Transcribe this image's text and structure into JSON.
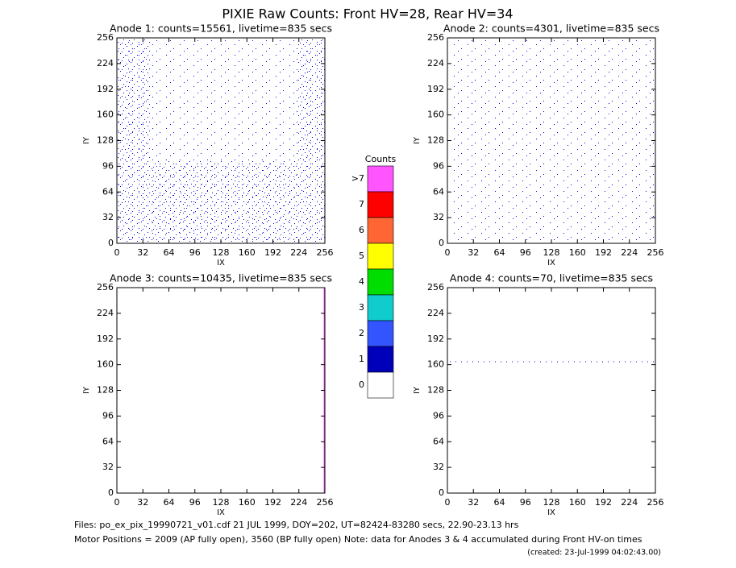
{
  "title": "PIXIE Raw Counts:  Front HV=28, Rear HV=34",
  "panels": [
    {
      "title": "Anode 1: counts=15561, livetime=835 secs",
      "xlabel": "IX",
      "ylabel": "IY",
      "xlim": [
        0,
        256
      ],
      "ylim": [
        0,
        256
      ],
      "xticks": [
        0,
        32,
        64,
        96,
        128,
        160,
        192,
        224,
        256
      ],
      "yticks": [
        0,
        32,
        64,
        96,
        128,
        160,
        192,
        224,
        256
      ]
    },
    {
      "title": "Anode 2: counts=4301, livetime=835 secs",
      "xlabel": "IX",
      "ylabel": "IY",
      "xlim": [
        0,
        256
      ],
      "ylim": [
        0,
        256
      ],
      "xticks": [
        0,
        32,
        64,
        96,
        128,
        160,
        192,
        224,
        256
      ],
      "yticks": [
        0,
        32,
        64,
        96,
        128,
        160,
        192,
        224,
        256
      ]
    },
    {
      "title": "Anode 3: counts=10435, livetime=835 secs",
      "xlabel": "IX",
      "ylabel": "IY",
      "xlim": [
        0,
        256
      ],
      "ylim": [
        0,
        256
      ],
      "xticks": [
        0,
        32,
        64,
        96,
        128,
        160,
        192,
        224,
        256
      ],
      "yticks": [
        0,
        32,
        64,
        96,
        128,
        160,
        192,
        224,
        256
      ]
    },
    {
      "title": "Anode 4: counts=70, livetime=835 secs",
      "xlabel": "IX",
      "ylabel": "IY",
      "xlim": [
        0,
        256
      ],
      "ylim": [
        0,
        256
      ],
      "xticks": [
        0,
        32,
        64,
        96,
        128,
        160,
        192,
        224,
        256
      ],
      "yticks": [
        0,
        32,
        64,
        96,
        128,
        160,
        192,
        224,
        256
      ]
    }
  ],
  "colorbar": {
    "title": "Counts",
    "labels": [
      ">7",
      "7",
      "6",
      "5",
      "4",
      "3",
      "2",
      "1",
      "0"
    ],
    "colors": [
      "#ff55ff",
      "#ff0000",
      "#ff6633",
      "#ffff00",
      "#00dd00",
      "#11cccc",
      "#3355ff",
      "#0000bb",
      "#ffffff"
    ]
  },
  "footer": [
    "Files: po_ex_pix_19990721_v01.cdf    21 JUL 1999, DOY=202, UT=82424-83280 secs, 22.90-23.13 hrs",
    "Motor Positions = 2009 (AP fully open), 3560 (BP fully open)    Note: data for Anodes 3 & 4 accumulated during Front HV-on times",
    "(created: 23-Jul-1999 04:02:43.00)"
  ]
}
